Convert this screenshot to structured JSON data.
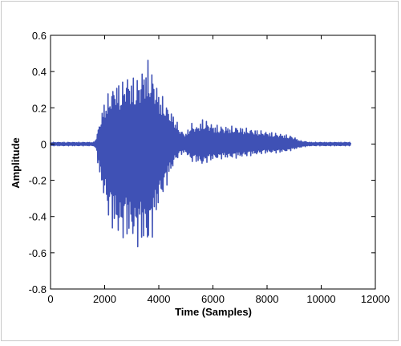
{
  "chart_data": {
    "type": "line",
    "title": "",
    "xlabel": "Time (Samples)",
    "ylabel": "Amplitude",
    "xlim": [
      0,
      12000
    ],
    "ylim": [
      -0.8,
      0.6
    ],
    "xticks": [
      0,
      2000,
      4000,
      6000,
      8000,
      10000,
      12000
    ],
    "yticks": [
      0.6,
      0.4,
      0.2,
      0,
      -0.2,
      -0.4,
      -0.6,
      -0.8
    ],
    "xtick_labels": [
      "0",
      "2000",
      "4000",
      "6000",
      "8000",
      "10000",
      "12000"
    ],
    "ytick_labels": [
      "0.6",
      "0.4",
      "0.2",
      "0",
      "-0.2",
      "-0.4",
      "-0.6",
      "-0.8"
    ],
    "grid": false,
    "series": [
      {
        "color": "#3f51b5",
        "x": [
          0,
          1600,
          1700,
          1800,
          2000,
          2200,
          2400,
          2600,
          2800,
          3000,
          3200,
          3400,
          3600,
          3800,
          4000,
          4200,
          4400,
          4600,
          4800,
          5000,
          5200,
          5400,
          5600,
          5800,
          6000,
          6400,
          6800,
          7200,
          7600,
          8000,
          8400,
          8800,
          9000,
          9200,
          9600,
          10000,
          10400,
          10800,
          11100
        ],
        "upper": [
          0.01,
          0.01,
          0.04,
          0.12,
          0.25,
          0.3,
          0.36,
          0.33,
          0.4,
          0.38,
          0.37,
          0.43,
          0.47,
          0.4,
          0.3,
          0.25,
          0.2,
          0.15,
          0.08,
          0.06,
          0.12,
          0.1,
          0.14,
          0.13,
          0.11,
          0.1,
          0.1,
          0.09,
          0.08,
          0.07,
          0.06,
          0.05,
          0.04,
          0.02,
          0.01,
          0.01,
          0.01,
          0.01,
          0.01
        ],
        "lower": [
          -0.01,
          -0.01,
          -0.04,
          -0.18,
          -0.32,
          -0.46,
          -0.5,
          -0.55,
          -0.52,
          -0.55,
          -0.58,
          -0.56,
          -0.6,
          -0.5,
          -0.34,
          -0.28,
          -0.18,
          -0.1,
          -0.06,
          -0.05,
          -0.1,
          -0.1,
          -0.12,
          -0.1,
          -0.09,
          -0.08,
          -0.08,
          -0.07,
          -0.06,
          -0.05,
          -0.05,
          -0.04,
          -0.03,
          -0.02,
          -0.01,
          -0.01,
          -0.01,
          -0.01,
          -0.01
        ]
      }
    ]
  }
}
